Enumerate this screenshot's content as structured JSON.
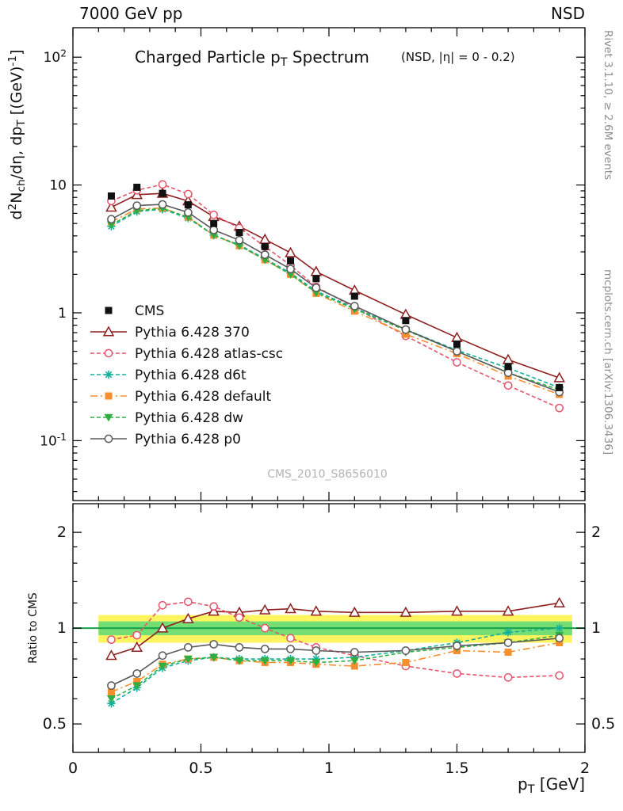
{
  "header": {
    "left": "7000 GeV pp",
    "right": "NSD"
  },
  "title": {
    "main": "Charged Particle p_{T} Spectrum",
    "condition": "(NSD, |η| =  0 - 0.2)"
  },
  "axes": {
    "main_ylabel": "d^{2}N_{ch}/dη, dp_{T} [(GeV)^{-1}]",
    "xlabel": "p_{T} [GeV]",
    "ratio_ylabel": "Ratio to CMS",
    "x_ticks": [
      0,
      0.5,
      1,
      1.5,
      2
    ],
    "main_y_tick_labels": {
      "100": "10^{2}",
      "10": "10",
      "1": "1",
      "0.1": "10^{-1}"
    },
    "ratio_y_ticks": [
      0.5,
      1,
      2
    ],
    "ratio_y_minor_ticks": [
      0.6,
      0.7,
      0.8,
      0.9,
      1.2,
      1.4,
      1.6,
      1.8
    ]
  },
  "watermarks": {
    "analysis": "CMS_2010_S8656010"
  },
  "side_notes": {
    "top_right": "Rivet 3.1.10, ≥ 2.6M events",
    "bottom_right": "mcplots.cern.ch [arXiv:1306.3436]"
  },
  "colors": {
    "band_yellow": "#fdf45f",
    "band_green": "#74dd74",
    "unity_line": "#15a049"
  },
  "chart_data": {
    "type": "line",
    "title": "Charged Particle pT Spectrum (NSD, |η| = 0 - 0.2)",
    "xlabel": "pT [GeV]",
    "ylabel": "d2Nch/dη dpT [(GeV)-1]",
    "xlim": [
      0,
      2
    ],
    "x": [
      0.15,
      0.25,
      0.35,
      0.45,
      0.55,
      0.65,
      0.75,
      0.85,
      0.95,
      1.1,
      1.3,
      1.5,
      1.7,
      1.9
    ],
    "main": {
      "yscale": "log",
      "ylim": [
        0.034,
        170
      ],
      "series": [
        {
          "name": "CMS",
          "color": "#111111",
          "marker": "square-filled",
          "line": "none",
          "values": [
            8.2,
            9.6,
            8.6,
            7.0,
            5.0,
            4.25,
            3.3,
            2.55,
            1.85,
            1.35,
            0.87,
            0.57,
            0.38,
            0.26
          ]
        },
        {
          "name": "Pythia 6.428 370",
          "color": "#8e1f1f",
          "marker": "triangle-open",
          "line": "solid",
          "values": [
            6.7,
            8.4,
            8.6,
            7.5,
            5.65,
            4.75,
            3.75,
            2.95,
            2.1,
            1.5,
            0.97,
            0.64,
            0.43,
            0.31
          ]
        },
        {
          "name": "Pythia 6.428 atlas-csc",
          "color": "#e4566b",
          "marker": "circle-open",
          "line": "dashed",
          "values": [
            7.5,
            9.1,
            10.1,
            8.5,
            5.85,
            4.6,
            3.3,
            2.35,
            1.6,
            1.1,
            0.66,
            0.41,
            0.27,
            0.18
          ]
        },
        {
          "name": "Pythia 6.428 d6t",
          "color": "#16af9c",
          "marker": "star",
          "line": "dashed",
          "values": [
            4.75,
            6.2,
            6.45,
            5.5,
            4.05,
            3.4,
            2.65,
            2.05,
            1.48,
            1.09,
            0.74,
            0.51,
            0.37,
            0.26
          ]
        },
        {
          "name": "Pythia 6.428 default",
          "color": "#f78f2e",
          "marker": "square-filled",
          "line": "dashdot",
          "values": [
            5.15,
            6.5,
            6.6,
            5.6,
            4.05,
            3.35,
            2.6,
            2.0,
            1.42,
            1.03,
            0.68,
            0.48,
            0.32,
            0.23
          ]
        },
        {
          "name": "Pythia 6.428 dw",
          "color": "#2fae44",
          "marker": "triangle-down-filled",
          "line": "dashed",
          "values": [
            4.9,
            6.3,
            6.55,
            5.6,
            4.05,
            3.35,
            2.6,
            2.0,
            1.44,
            1.07,
            0.73,
            0.5,
            0.34,
            0.25
          ]
        },
        {
          "name": "Pythia 6.428 p0",
          "color": "#5a5a5a",
          "marker": "circle-open",
          "line": "solid",
          "values": [
            5.4,
            6.9,
            7.05,
            6.1,
            4.45,
            3.7,
            2.85,
            2.2,
            1.57,
            1.13,
            0.74,
            0.5,
            0.34,
            0.24
          ]
        }
      ]
    },
    "ratio": {
      "yscale": "log",
      "ylim": [
        0.407,
        2.46
      ],
      "band_x": [
        0.1,
        1.95
      ],
      "bands": {
        "yellow": [
          0.9,
          1.1
        ],
        "green": [
          0.95,
          1.05
        ]
      },
      "series": [
        {
          "name": "Pythia 6.428 370",
          "values": [
            0.82,
            0.87,
            1.0,
            1.07,
            1.13,
            1.12,
            1.14,
            1.15,
            1.13,
            1.12,
            1.12,
            1.13,
            1.13,
            1.2
          ]
        },
        {
          "name": "Pythia 6.428 atlas-csc",
          "values": [
            0.92,
            0.95,
            1.18,
            1.21,
            1.17,
            1.08,
            1.0,
            0.93,
            0.87,
            0.82,
            0.76,
            0.72,
            0.7,
            0.71
          ]
        },
        {
          "name": "Pythia 6.428 d6t",
          "values": [
            0.58,
            0.65,
            0.75,
            0.79,
            0.81,
            0.8,
            0.8,
            0.8,
            0.8,
            0.81,
            0.85,
            0.9,
            0.97,
            1.0
          ]
        },
        {
          "name": "Pythia 6.428 default",
          "values": [
            0.63,
            0.68,
            0.77,
            0.8,
            0.81,
            0.79,
            0.78,
            0.78,
            0.77,
            0.76,
            0.78,
            0.85,
            0.84,
            0.9
          ]
        },
        {
          "name": "Pythia 6.428 dw",
          "values": [
            0.6,
            0.66,
            0.76,
            0.8,
            0.81,
            0.79,
            0.79,
            0.79,
            0.78,
            0.79,
            0.84,
            0.87,
            0.9,
            0.95
          ]
        },
        {
          "name": "Pythia 6.428 p0",
          "values": [
            0.66,
            0.72,
            0.82,
            0.87,
            0.89,
            0.87,
            0.86,
            0.86,
            0.85,
            0.84,
            0.85,
            0.88,
            0.9,
            0.93
          ]
        }
      ]
    }
  }
}
